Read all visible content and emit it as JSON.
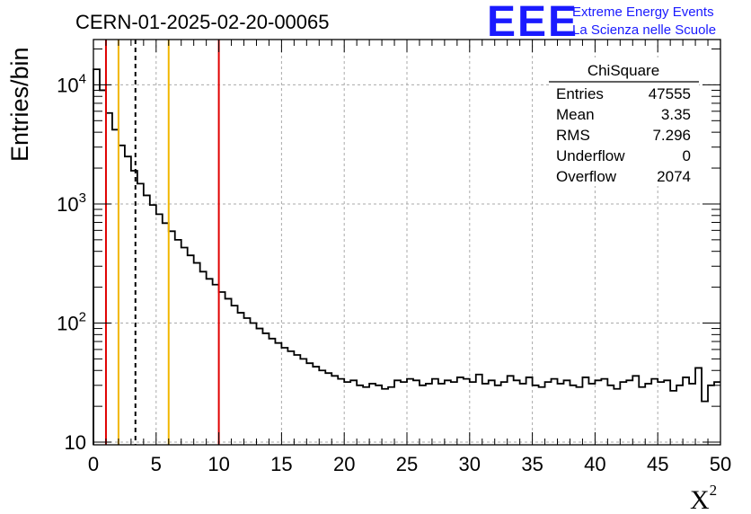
{
  "chart_data": {
    "type": "bar",
    "subtype": "step-histogram",
    "title": "CERN-01-2025-02-20-00065",
    "xlabel": "X",
    "xlabel_superscript": "2",
    "ylabel": "Entries/bin",
    "xlim": [
      0,
      50
    ],
    "ylim": [
      9.5,
      24000
    ],
    "yscale": "log",
    "grid": true,
    "x_ticks": [
      0,
      5,
      10,
      15,
      20,
      25,
      30,
      35,
      40,
      45,
      50
    ],
    "y_ticks": [
      {
        "value": 10,
        "base": "10",
        "exp": ""
      },
      {
        "value": 100,
        "base": "10",
        "exp": "2"
      },
      {
        "value": 1000,
        "base": "10",
        "exp": "3"
      },
      {
        "value": 10000,
        "base": "10",
        "exp": "4"
      }
    ],
    "bin_width": 0.5,
    "bin_start": 0,
    "values": [
      13500,
      9000,
      5800,
      4200,
      3100,
      2500,
      1900,
      1480,
      1180,
      980,
      820,
      690,
      590,
      500,
      430,
      370,
      320,
      270,
      235,
      210,
      182,
      160,
      140,
      122,
      110,
      100,
      90,
      82,
      74,
      68,
      62,
      58,
      54,
      50,
      46,
      43,
      40,
      38,
      36,
      34,
      32,
      33,
      30,
      29,
      31,
      30,
      28,
      29,
      33,
      32,
      34,
      33,
      30,
      31,
      34,
      31,
      33,
      32,
      35,
      34,
      32,
      37,
      31,
      33,
      30,
      32,
      36,
      33,
      31,
      35,
      30,
      29,
      32,
      34,
      31,
      33,
      30,
      29,
      35,
      31,
      33,
      34,
      30,
      28,
      32,
      33,
      36,
      29,
      31,
      34,
      32,
      33,
      27,
      30,
      35,
      31,
      42,
      22,
      30,
      32
    ],
    "vertical_lines": [
      {
        "x": 1,
        "color": "#e00000",
        "style": "solid"
      },
      {
        "x": 2,
        "color": "#f2b600",
        "style": "solid"
      },
      {
        "x": 3.35,
        "color": "#000000",
        "style": "dashed"
      },
      {
        "x": 6,
        "color": "#f2b600",
        "style": "solid"
      },
      {
        "x": 10,
        "color": "#e00000",
        "style": "solid"
      }
    ],
    "stats_box": {
      "title": "ChiSquare",
      "rows": [
        {
          "label": "Entries",
          "value": "47555"
        },
        {
          "label": "Mean",
          "value": "3.35"
        },
        {
          "label": "RMS",
          "value": "7.296"
        },
        {
          "label": "Underflow",
          "value": "0"
        },
        {
          "label": "Overflow",
          "value": "2074"
        }
      ]
    }
  },
  "logo": {
    "acronym": "EEE",
    "line1": "Extreme Energy Events",
    "line2": "La Scienza nelle Scuole"
  }
}
